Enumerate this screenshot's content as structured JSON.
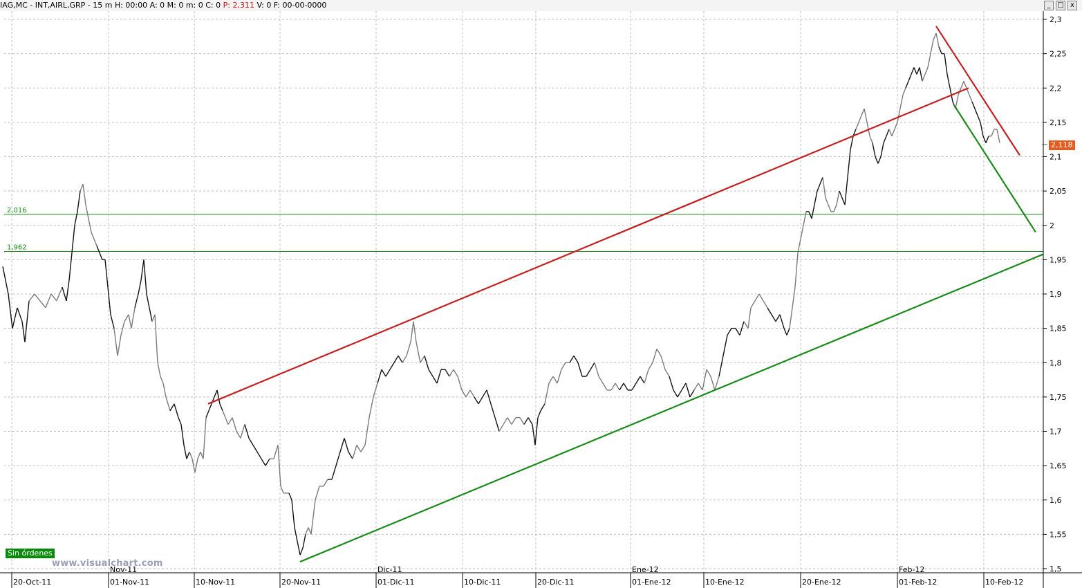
{
  "header": {
    "symbol": "IAG,MC - INT,AIRL,GRP -",
    "timeframe": "15 m",
    "stats_pre": "H: 00:00 A: 0 M: 0 m: 0 C: 0",
    "p_label": "P",
    "p_value": ": 2,311",
    "stats_post": "V: 0 F: 00-00-0000"
  },
  "window_buttons": {
    "minimize": "_",
    "maximize": "□",
    "close": "x"
  },
  "badges": {
    "orders": "Sin órdenes",
    "watermark": "www.visualchart.com",
    "last_price": "2,118",
    "last_price_marker": "←"
  },
  "colors": {
    "price": "#111111",
    "price_light": "#7a7a7a",
    "resistance": "#c42020",
    "support": "#1a8a1a",
    "level": "#1a8a1a",
    "grid": "#bfbfbf"
  },
  "chart_data": {
    "type": "line",
    "title": "",
    "xlabel": "",
    "ylabel": "",
    "ylim": [
      1.5,
      2.3
    ],
    "y_ticks": [
      "2,3",
      "2,25",
      "2,2",
      "2,15",
      "2,1",
      "2,05",
      "2",
      "1,95",
      "1,9",
      "1,85",
      "1,8",
      "1,75",
      "1,7",
      "1,65",
      "1,6",
      "1,55",
      "1,5"
    ],
    "x_ticks": [
      "20-Oct-11",
      "01-Nov-11",
      "10-Nov-11",
      "20-Nov-11",
      "01-Dic-11",
      "10-Dic-11",
      "20-Dic-11",
      "01-Ene-12",
      "10-Ene-12",
      "20-Ene-12",
      "01-Feb-12",
      "10-Feb-12"
    ],
    "month_labels": [
      "Nov-11",
      "Dic-11",
      "Ene-12",
      "Feb-12"
    ],
    "grid": true,
    "horizontal_levels": [
      {
        "label": "2,016",
        "value": 2.016
      },
      {
        "label": "1,962",
        "value": 1.962
      }
    ],
    "trendlines": [
      {
        "color": "resistance",
        "from": {
          "t": 301,
          "y": 1.74
        },
        "to": {
          "t": 1401,
          "y": 2.2
        }
      },
      {
        "color": "resistance",
        "from": {
          "t": 1354,
          "y": 2.29
        },
        "to": {
          "t": 1475,
          "y": 2.102
        }
      },
      {
        "color": "support",
        "from": {
          "t": 434,
          "y": 1.51
        },
        "to": {
          "t": 1509,
          "y": 1.958
        }
      },
      {
        "color": "support",
        "from": {
          "t": 1380,
          "y": 2.175
        },
        "to": {
          "t": 1498,
          "y": 1.99
        }
      }
    ],
    "series": [
      {
        "values": [
          [
            4,
            1.94
          ],
          [
            12,
            1.9
          ],
          [
            18,
            1.85
          ],
          [
            25,
            1.88
          ],
          [
            32,
            1.86
          ],
          [
            36,
            1.83
          ],
          [
            42,
            1.89
          ],
          [
            50,
            1.9
          ],
          [
            58,
            1.89
          ],
          [
            66,
            1.88
          ],
          [
            74,
            1.9
          ],
          [
            82,
            1.89
          ],
          [
            90,
            1.91
          ],
          [
            96,
            1.89
          ],
          [
            100,
            1.92
          ],
          [
            104,
            1.96
          ],
          [
            108,
            2.0
          ],
          [
            112,
            2.02
          ],
          [
            116,
            2.05
          ],
          [
            120,
            2.06
          ],
          [
            124,
            2.03
          ],
          [
            128,
            2.01
          ],
          [
            132,
            1.99
          ],
          [
            136,
            1.98
          ],
          [
            140,
            1.97
          ],
          [
            144,
            1.96
          ],
          [
            148,
            1.95
          ],
          [
            152,
            1.95
          ],
          [
            156,
            1.91
          ],
          [
            160,
            1.87
          ],
          [
            165,
            1.85
          ],
          [
            170,
            1.81
          ],
          [
            175,
            1.84
          ],
          [
            180,
            1.86
          ],
          [
            186,
            1.87
          ],
          [
            190,
            1.85
          ],
          [
            195,
            1.88
          ],
          [
            200,
            1.9
          ],
          [
            204,
            1.92
          ],
          [
            208,
            1.95
          ],
          [
            212,
            1.9
          ],
          [
            216,
            1.88
          ],
          [
            220,
            1.86
          ],
          [
            224,
            1.87
          ],
          [
            228,
            1.8
          ],
          [
            232,
            1.78
          ],
          [
            236,
            1.77
          ],
          [
            240,
            1.75
          ],
          [
            246,
            1.73
          ],
          [
            252,
            1.74
          ],
          [
            258,
            1.72
          ],
          [
            262,
            1.71
          ],
          [
            266,
            1.68
          ],
          [
            270,
            1.66
          ],
          [
            274,
            1.67
          ],
          [
            278,
            1.66
          ],
          [
            282,
            1.64
          ],
          [
            286,
            1.66
          ],
          [
            290,
            1.67
          ],
          [
            294,
            1.66
          ],
          [
            298,
            1.72
          ],
          [
            302,
            1.73
          ],
          [
            306,
            1.74
          ],
          [
            310,
            1.75
          ],
          [
            314,
            1.76
          ],
          [
            318,
            1.74
          ],
          [
            322,
            1.73
          ],
          [
            326,
            1.72
          ],
          [
            330,
            1.71
          ],
          [
            336,
            1.72
          ],
          [
            342,
            1.7
          ],
          [
            348,
            1.69
          ],
          [
            354,
            1.71
          ],
          [
            360,
            1.69
          ],
          [
            366,
            1.68
          ],
          [
            372,
            1.67
          ],
          [
            378,
            1.66
          ],
          [
            384,
            1.65
          ],
          [
            390,
            1.66
          ],
          [
            396,
            1.66
          ],
          [
            402,
            1.68
          ],
          [
            406,
            1.62
          ],
          [
            410,
            1.61
          ],
          [
            414,
            1.61
          ],
          [
            418,
            1.61
          ],
          [
            422,
            1.6
          ],
          [
            426,
            1.56
          ],
          [
            430,
            1.54
          ],
          [
            434,
            1.52
          ],
          [
            438,
            1.53
          ],
          [
            442,
            1.55
          ],
          [
            446,
            1.56
          ],
          [
            450,
            1.55
          ],
          [
            456,
            1.6
          ],
          [
            462,
            1.62
          ],
          [
            468,
            1.62
          ],
          [
            474,
            1.63
          ],
          [
            480,
            1.63
          ],
          [
            486,
            1.65
          ],
          [
            492,
            1.67
          ],
          [
            498,
            1.69
          ],
          [
            504,
            1.67
          ],
          [
            510,
            1.66
          ],
          [
            516,
            1.68
          ],
          [
            522,
            1.67
          ],
          [
            528,
            1.68
          ],
          [
            534,
            1.72
          ],
          [
            540,
            1.75
          ],
          [
            546,
            1.77
          ],
          [
            552,
            1.79
          ],
          [
            558,
            1.78
          ],
          [
            564,
            1.79
          ],
          [
            570,
            1.8
          ],
          [
            576,
            1.81
          ],
          [
            582,
            1.8
          ],
          [
            588,
            1.81
          ],
          [
            594,
            1.83
          ],
          [
            598,
            1.86
          ],
          [
            602,
            1.83
          ],
          [
            608,
            1.8
          ],
          [
            614,
            1.81
          ],
          [
            620,
            1.79
          ],
          [
            626,
            1.78
          ],
          [
            632,
            1.77
          ],
          [
            638,
            1.79
          ],
          [
            644,
            1.79
          ],
          [
            650,
            1.78
          ],
          [
            656,
            1.79
          ],
          [
            662,
            1.78
          ],
          [
            668,
            1.76
          ],
          [
            674,
            1.75
          ],
          [
            680,
            1.76
          ],
          [
            686,
            1.75
          ],
          [
            692,
            1.74
          ],
          [
            698,
            1.75
          ],
          [
            704,
            1.76
          ],
          [
            710,
            1.74
          ],
          [
            716,
            1.72
          ],
          [
            722,
            1.7
          ],
          [
            728,
            1.71
          ],
          [
            734,
            1.72
          ],
          [
            740,
            1.71
          ],
          [
            746,
            1.72
          ],
          [
            752,
            1.72
          ],
          [
            758,
            1.71
          ],
          [
            764,
            1.72
          ],
          [
            770,
            1.71
          ],
          [
            774,
            1.68
          ],
          [
            778,
            1.72
          ],
          [
            782,
            1.73
          ],
          [
            788,
            1.74
          ],
          [
            794,
            1.77
          ],
          [
            800,
            1.78
          ],
          [
            806,
            1.77
          ],
          [
            812,
            1.79
          ],
          [
            818,
            1.8
          ],
          [
            824,
            1.8
          ],
          [
            830,
            1.81
          ],
          [
            836,
            1.8
          ],
          [
            842,
            1.78
          ],
          [
            848,
            1.78
          ],
          [
            854,
            1.79
          ],
          [
            860,
            1.8
          ],
          [
            866,
            1.78
          ],
          [
            872,
            1.77
          ],
          [
            878,
            1.76
          ],
          [
            884,
            1.76
          ],
          [
            890,
            1.77
          ],
          [
            896,
            1.76
          ],
          [
            902,
            1.77
          ],
          [
            908,
            1.76
          ],
          [
            914,
            1.76
          ],
          [
            920,
            1.77
          ],
          [
            926,
            1.78
          ],
          [
            932,
            1.77
          ],
          [
            938,
            1.79
          ],
          [
            944,
            1.8
          ],
          [
            950,
            1.82
          ],
          [
            956,
            1.81
          ],
          [
            962,
            1.79
          ],
          [
            968,
            1.78
          ],
          [
            974,
            1.76
          ],
          [
            980,
            1.75
          ],
          [
            986,
            1.76
          ],
          [
            992,
            1.77
          ],
          [
            998,
            1.75
          ],
          [
            1004,
            1.76
          ],
          [
            1010,
            1.77
          ],
          [
            1016,
            1.76
          ],
          [
            1022,
            1.79
          ],
          [
            1028,
            1.78
          ],
          [
            1034,
            1.76
          ],
          [
            1040,
            1.78
          ],
          [
            1046,
            1.81
          ],
          [
            1052,
            1.84
          ],
          [
            1058,
            1.85
          ],
          [
            1064,
            1.85
          ],
          [
            1070,
            1.84
          ],
          [
            1076,
            1.86
          ],
          [
            1082,
            1.85
          ],
          [
            1086,
            1.88
          ],
          [
            1092,
            1.89
          ],
          [
            1098,
            1.9
          ],
          [
            1104,
            1.89
          ],
          [
            1110,
            1.88
          ],
          [
            1116,
            1.87
          ],
          [
            1122,
            1.86
          ],
          [
            1128,
            1.87
          ],
          [
            1134,
            1.85
          ],
          [
            1138,
            1.84
          ],
          [
            1142,
            1.85
          ],
          [
            1146,
            1.88
          ],
          [
            1150,
            1.91
          ],
          [
            1154,
            1.96
          ],
          [
            1158,
            1.98
          ],
          [
            1162,
            2.0
          ],
          [
            1166,
            2.02
          ],
          [
            1170,
            2.02
          ],
          [
            1174,
            2.01
          ],
          [
            1178,
            2.03
          ],
          [
            1182,
            2.05
          ],
          [
            1186,
            2.06
          ],
          [
            1190,
            2.07
          ],
          [
            1194,
            2.04
          ],
          [
            1198,
            2.03
          ],
          [
            1202,
            2.02
          ],
          [
            1206,
            2.02
          ],
          [
            1210,
            2.03
          ],
          [
            1214,
            2.05
          ],
          [
            1218,
            2.04
          ],
          [
            1222,
            2.03
          ],
          [
            1226,
            2.07
          ],
          [
            1230,
            2.11
          ],
          [
            1234,
            2.13
          ],
          [
            1238,
            2.14
          ],
          [
            1242,
            2.15
          ],
          [
            1246,
            2.16
          ],
          [
            1250,
            2.17
          ],
          [
            1254,
            2.15
          ],
          [
            1258,
            2.13
          ],
          [
            1262,
            2.12
          ],
          [
            1266,
            2.1
          ],
          [
            1270,
            2.09
          ],
          [
            1274,
            2.1
          ],
          [
            1278,
            2.12
          ],
          [
            1282,
            2.13
          ],
          [
            1286,
            2.14
          ],
          [
            1290,
            2.13
          ],
          [
            1294,
            2.14
          ],
          [
            1298,
            2.15
          ],
          [
            1302,
            2.17
          ],
          [
            1306,
            2.19
          ],
          [
            1310,
            2.2
          ],
          [
            1314,
            2.21
          ],
          [
            1318,
            2.22
          ],
          [
            1322,
            2.23
          ],
          [
            1326,
            2.22
          ],
          [
            1330,
            2.23
          ],
          [
            1334,
            2.21
          ],
          [
            1338,
            2.22
          ],
          [
            1342,
            2.23
          ],
          [
            1346,
            2.25
          ],
          [
            1350,
            2.27
          ],
          [
            1354,
            2.28
          ],
          [
            1358,
            2.26
          ],
          [
            1362,
            2.25
          ],
          [
            1366,
            2.25
          ],
          [
            1370,
            2.22
          ],
          [
            1374,
            2.2
          ],
          [
            1378,
            2.18
          ],
          [
            1382,
            2.17
          ],
          [
            1386,
            2.19
          ],
          [
            1390,
            2.2
          ],
          [
            1394,
            2.21
          ],
          [
            1398,
            2.2
          ],
          [
            1402,
            2.19
          ],
          [
            1406,
            2.18
          ],
          [
            1410,
            2.17
          ],
          [
            1414,
            2.16
          ],
          [
            1418,
            2.15
          ],
          [
            1422,
            2.13
          ],
          [
            1426,
            2.12
          ],
          [
            1430,
            2.13
          ],
          [
            1434,
            2.13
          ],
          [
            1438,
            2.14
          ],
          [
            1442,
            2.14
          ],
          [
            1446,
            2.12
          ]
        ]
      }
    ]
  }
}
